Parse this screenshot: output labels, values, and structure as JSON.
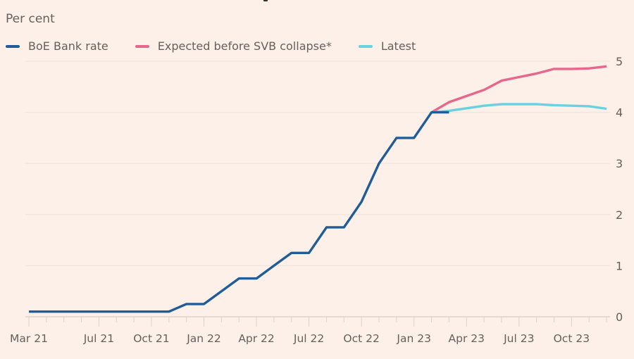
{
  "chart_data": {
    "type": "line",
    "title": "",
    "ylabel": "Per cent",
    "xlabel": "",
    "ylim": [
      0,
      5
    ],
    "yticks": [
      0,
      1,
      2,
      3,
      4,
      5
    ],
    "x_months": [
      "Mar 21",
      "Apr 21",
      "May 21",
      "Jun 21",
      "Jul 21",
      "Aug 21",
      "Sep 21",
      "Oct 21",
      "Nov 21",
      "Dec 21",
      "Jan 22",
      "Feb 22",
      "Mar 22",
      "Apr 22",
      "May 22",
      "Jun 22",
      "Jul 22",
      "Aug 22",
      "Sep 22",
      "Oct 22",
      "Nov 22",
      "Dec 22",
      "Jan 23",
      "Feb 23",
      "Mar 23",
      "Apr 23",
      "May 23",
      "Jun 23",
      "Jul 23",
      "Aug 23",
      "Sep 23",
      "Oct 23",
      "Nov 23",
      "Dec 23"
    ],
    "xtick_labels": [
      {
        "label": "Mar 21",
        "index": 0
      },
      {
        "label": "Jul 21",
        "index": 4
      },
      {
        "label": "Oct 21",
        "index": 7
      },
      {
        "label": "Jan 22",
        "index": 10
      },
      {
        "label": "Apr 22",
        "index": 13
      },
      {
        "label": "Jul 22",
        "index": 16
      },
      {
        "label": "Oct 22",
        "index": 19
      },
      {
        "label": "Jan 23",
        "index": 22
      },
      {
        "label": "Apr 23",
        "index": 25
      },
      {
        "label": "Jul 23",
        "index": 28
      },
      {
        "label": "Oct 23",
        "index": 31
      }
    ],
    "grid": true,
    "legend_position": "top-left",
    "series": [
      {
        "name": "BoE Bank rate",
        "color": "#1f5c99",
        "start_index": 0,
        "values": [
          0.1,
          0.1,
          0.1,
          0.1,
          0.1,
          0.1,
          0.1,
          0.1,
          0.1,
          0.25,
          0.25,
          0.5,
          0.75,
          0.75,
          1.0,
          1.25,
          1.25,
          1.75,
          1.75,
          2.25,
          3.0,
          3.5,
          3.5,
          4.0,
          4.0
        ]
      },
      {
        "name": "Expected before SVB collapse*",
        "color": "#e8658c",
        "start_index": 23,
        "values": [
          4.0,
          4.2,
          4.32,
          4.44,
          4.62,
          4.69,
          4.76,
          4.85,
          4.85,
          4.86,
          4.9
        ]
      },
      {
        "name": "Latest",
        "color": "#6ad1e0",
        "start_index": 23,
        "values": [
          4.0,
          4.03,
          4.08,
          4.13,
          4.16,
          4.16,
          4.16,
          4.14,
          4.13,
          4.12,
          4.07
        ]
      }
    ]
  },
  "ylabel_text": "Per cent",
  "legend": [
    {
      "label": "BoE Bank rate",
      "color": "#1f5c99"
    },
    {
      "label": "Expected before SVB collapse*",
      "color": "#e8658c"
    },
    {
      "label": "Latest",
      "color": "#6ad1e0"
    }
  ]
}
